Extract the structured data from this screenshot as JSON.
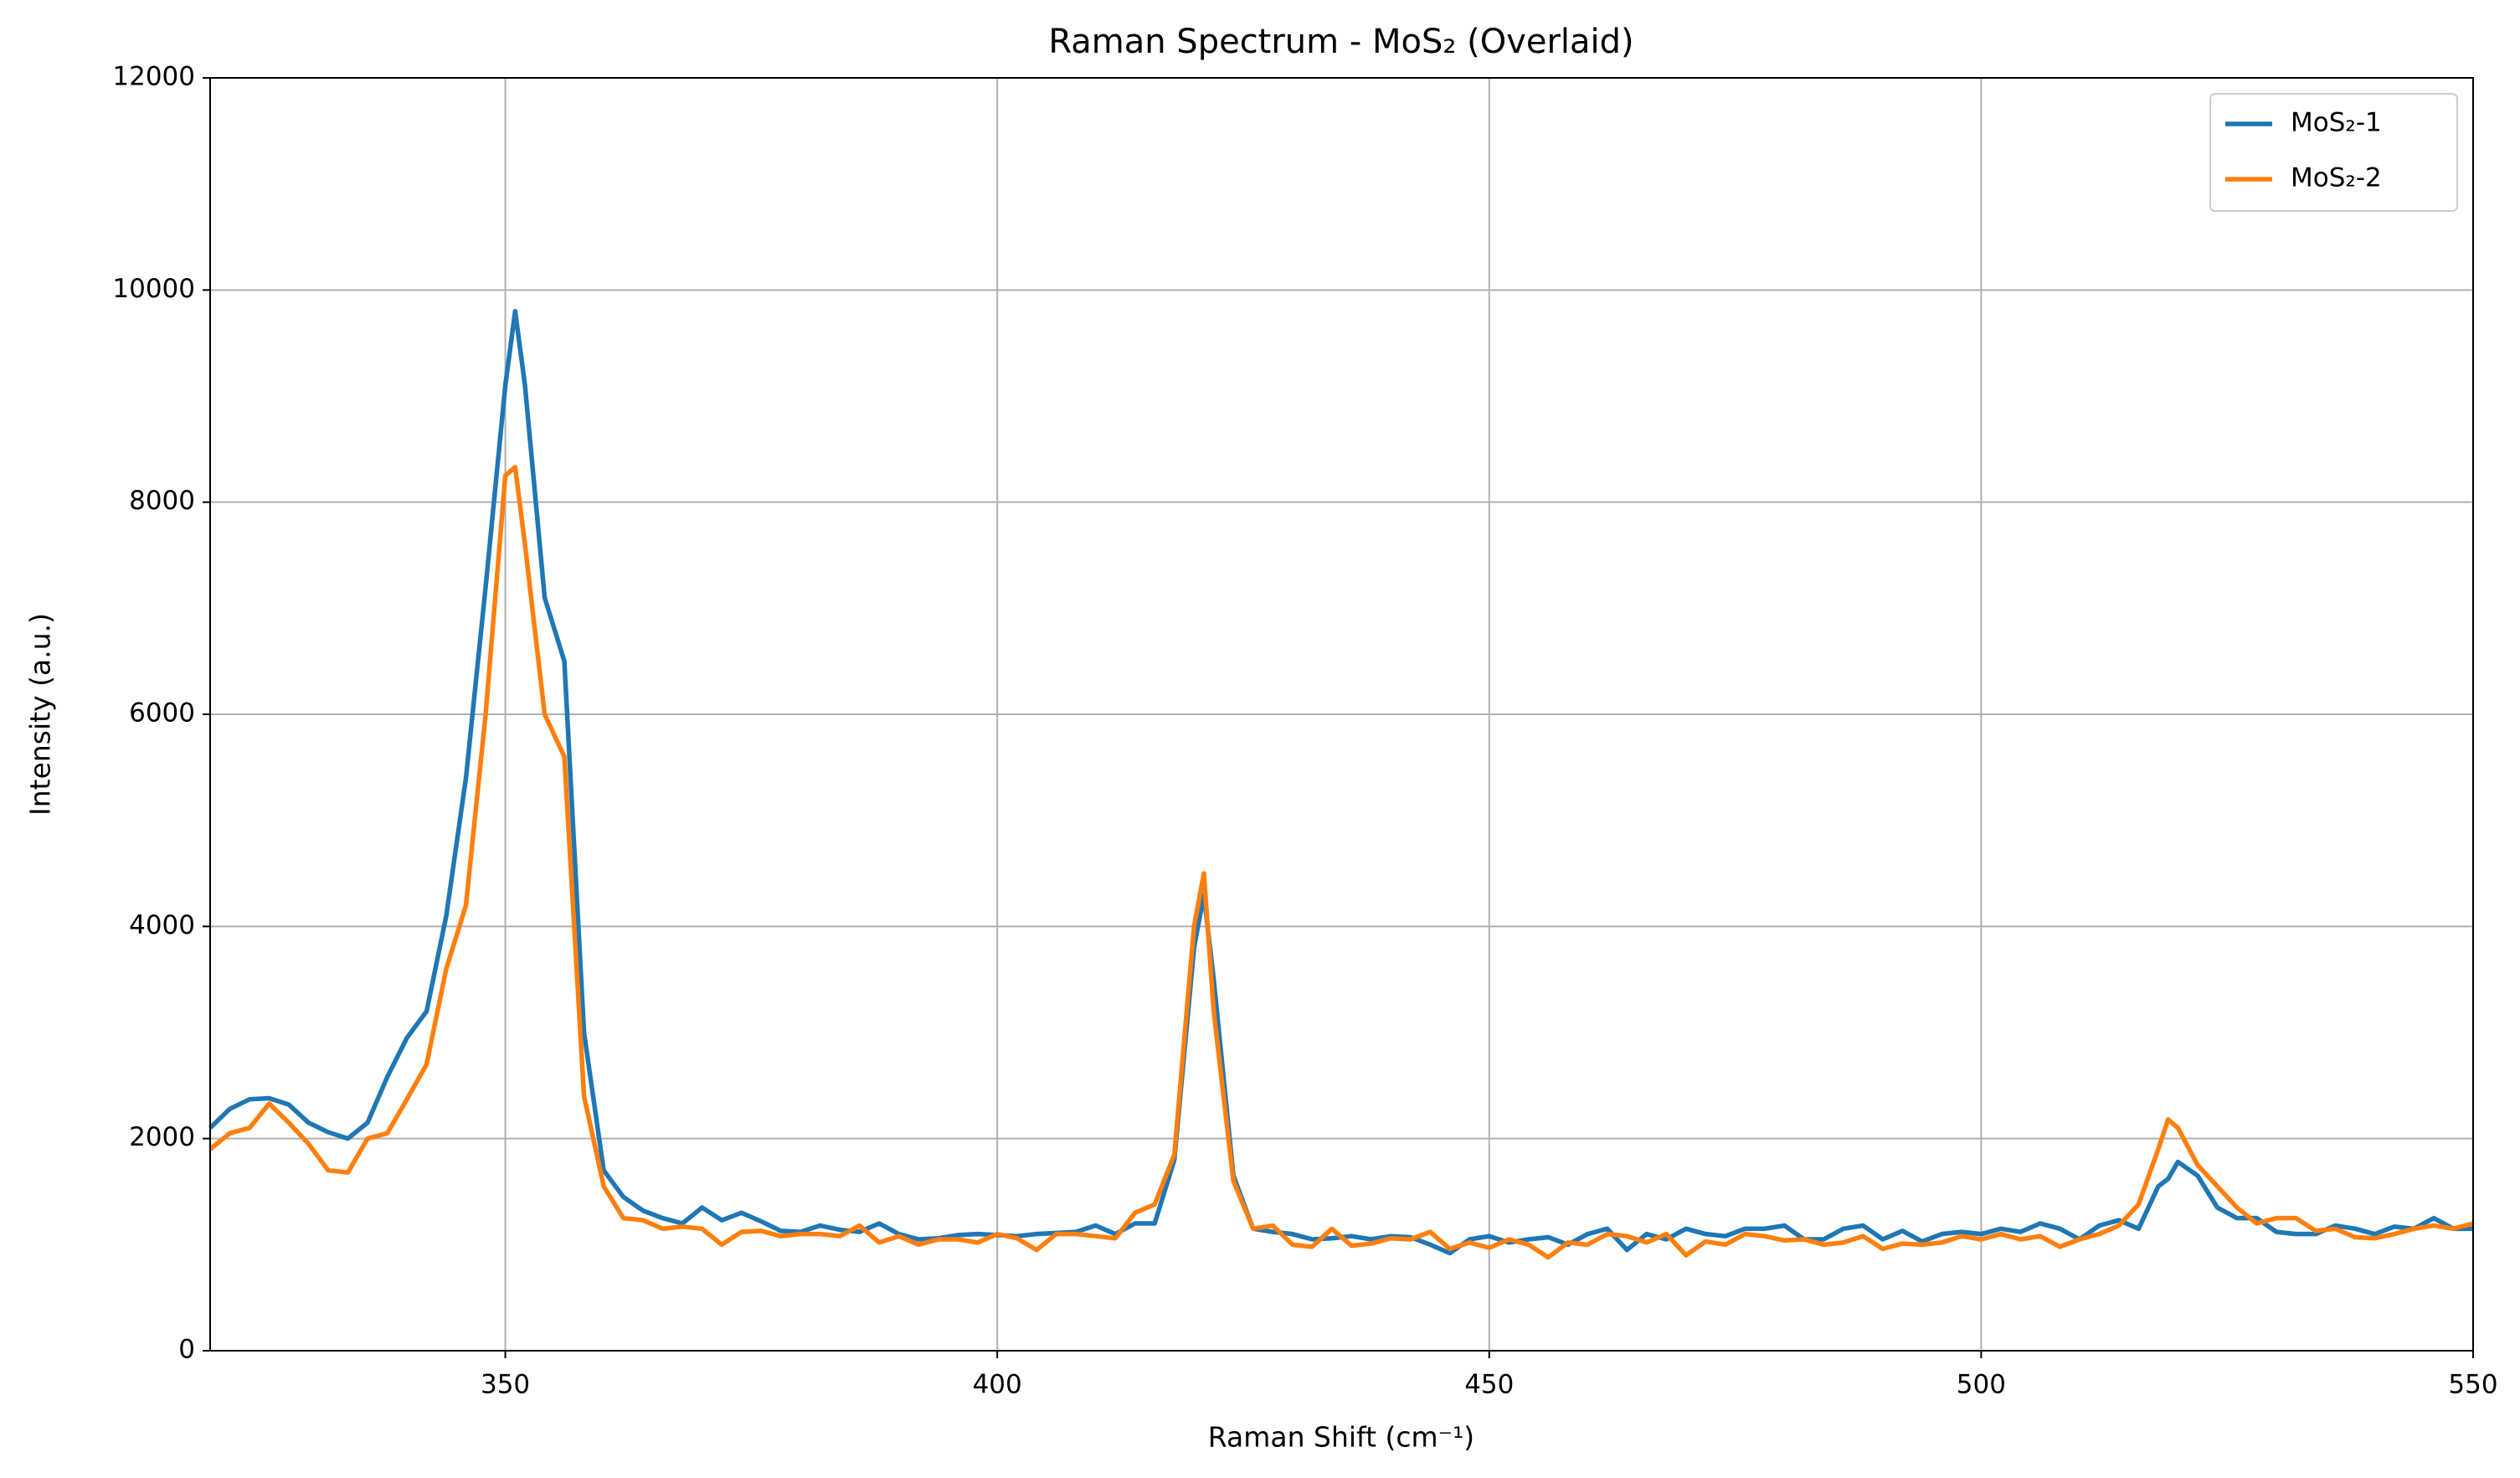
{
  "chart_data": {
    "type": "line",
    "title": "Raman Spectrum - MoS₂ (Overlaid)",
    "x_label": "Raman Shift (cm⁻¹)",
    "y_label": "Intensity (a.u.)",
    "x": [
      320,
      322,
      324,
      326,
      328,
      330,
      332,
      334,
      336,
      338,
      340,
      342,
      344,
      346,
      348,
      350,
      351,
      352,
      354,
      356,
      358,
      360,
      362,
      364,
      366,
      368,
      370,
      372,
      374,
      376,
      378,
      380,
      382,
      384,
      386,
      388,
      390,
      392,
      394,
      396,
      398,
      400,
      402,
      404,
      406,
      408,
      410,
      412,
      414,
      416,
      418,
      420,
      421,
      422,
      424,
      426,
      428,
      430,
      432,
      434,
      436,
      438,
      440,
      442,
      444,
      446,
      448,
      450,
      452,
      454,
      456,
      458,
      460,
      462,
      464,
      466,
      468,
      470,
      472,
      474,
      476,
      478,
      480,
      482,
      484,
      486,
      488,
      490,
      492,
      494,
      496,
      498,
      500,
      502,
      504,
      506,
      508,
      510,
      512,
      514,
      516,
      518,
      519,
      520,
      522,
      524,
      526,
      528,
      530,
      532,
      534,
      536,
      538,
      540,
      542,
      544,
      546,
      548,
      550
    ],
    "series": [
      {
        "name": "MoS₂-1",
        "color": "#1f77b4",
        "values": [
          2100,
          2280,
          2370,
          2380,
          2320,
          2150,
          2060,
          2000,
          2150,
          2580,
          2950,
          3200,
          4100,
          5400,
          7200,
          9100,
          9800,
          9100,
          7100,
          6500,
          3000,
          1700,
          1450,
          1320,
          1250,
          1200,
          1350,
          1230,
          1300,
          1220,
          1130,
          1120,
          1180,
          1140,
          1120,
          1200,
          1100,
          1050,
          1060,
          1090,
          1100,
          1090,
          1080,
          1100,
          1110,
          1120,
          1180,
          1100,
          1200,
          1200,
          1800,
          3800,
          4300,
          3500,
          1650,
          1150,
          1120,
          1100,
          1050,
          1060,
          1080,
          1050,
          1080,
          1070,
          1000,
          920,
          1050,
          1080,
          1020,
          1050,
          1070,
          1000,
          1100,
          1150,
          950,
          1100,
          1050,
          1150,
          1100,
          1080,
          1150,
          1150,
          1180,
          1050,
          1050,
          1150,
          1180,
          1050,
          1130,
          1030,
          1100,
          1120,
          1100,
          1150,
          1120,
          1200,
          1150,
          1050,
          1180,
          1230,
          1150,
          1550,
          1620,
          1780,
          1650,
          1350,
          1250,
          1250,
          1120,
          1100,
          1100,
          1180,
          1150,
          1100,
          1170,
          1150,
          1250,
          1150,
          1150
        ]
      },
      {
        "name": "MoS₂-2",
        "color": "#ff7f0e",
        "values": [
          1900,
          2050,
          2100,
          2330,
          2150,
          1950,
          1700,
          1680,
          2000,
          2050,
          2370,
          2700,
          3600,
          4200,
          6000,
          8250,
          8330,
          7600,
          6000,
          5600,
          2400,
          1550,
          1250,
          1230,
          1150,
          1170,
          1150,
          1000,
          1120,
          1130,
          1080,
          1100,
          1100,
          1080,
          1180,
          1020,
          1080,
          1000,
          1050,
          1050,
          1020,
          1100,
          1060,
          950,
          1100,
          1100,
          1080,
          1060,
          1300,
          1380,
          1850,
          4000,
          4500,
          3200,
          1600,
          1150,
          1180,
          1000,
          980,
          1150,
          990,
          1010,
          1060,
          1050,
          1120,
          960,
          1020,
          970,
          1050,
          1000,
          880,
          1020,
          1000,
          1100,
          1080,
          1020,
          1100,
          900,
          1030,
          1000,
          1100,
          1080,
          1040,
          1050,
          1000,
          1020,
          1080,
          960,
          1010,
          1000,
          1020,
          1080,
          1050,
          1100,
          1050,
          1080,
          980,
          1050,
          1100,
          1180,
          1380,
          1900,
          2180,
          2100,
          1750,
          1550,
          1350,
          1200,
          1250,
          1250,
          1130,
          1150,
          1070,
          1060,
          1100,
          1150,
          1180,
          1150,
          1200
        ]
      }
    ],
    "xlim": [
      320,
      550
    ],
    "xticks": [
      350,
      400,
      450,
      500,
      550
    ],
    "ylim": [
      0,
      12000
    ],
    "yticks": [
      0,
      2000,
      4000,
      6000,
      8000,
      10000,
      12000
    ],
    "grid": true,
    "legend": "upper right"
  }
}
